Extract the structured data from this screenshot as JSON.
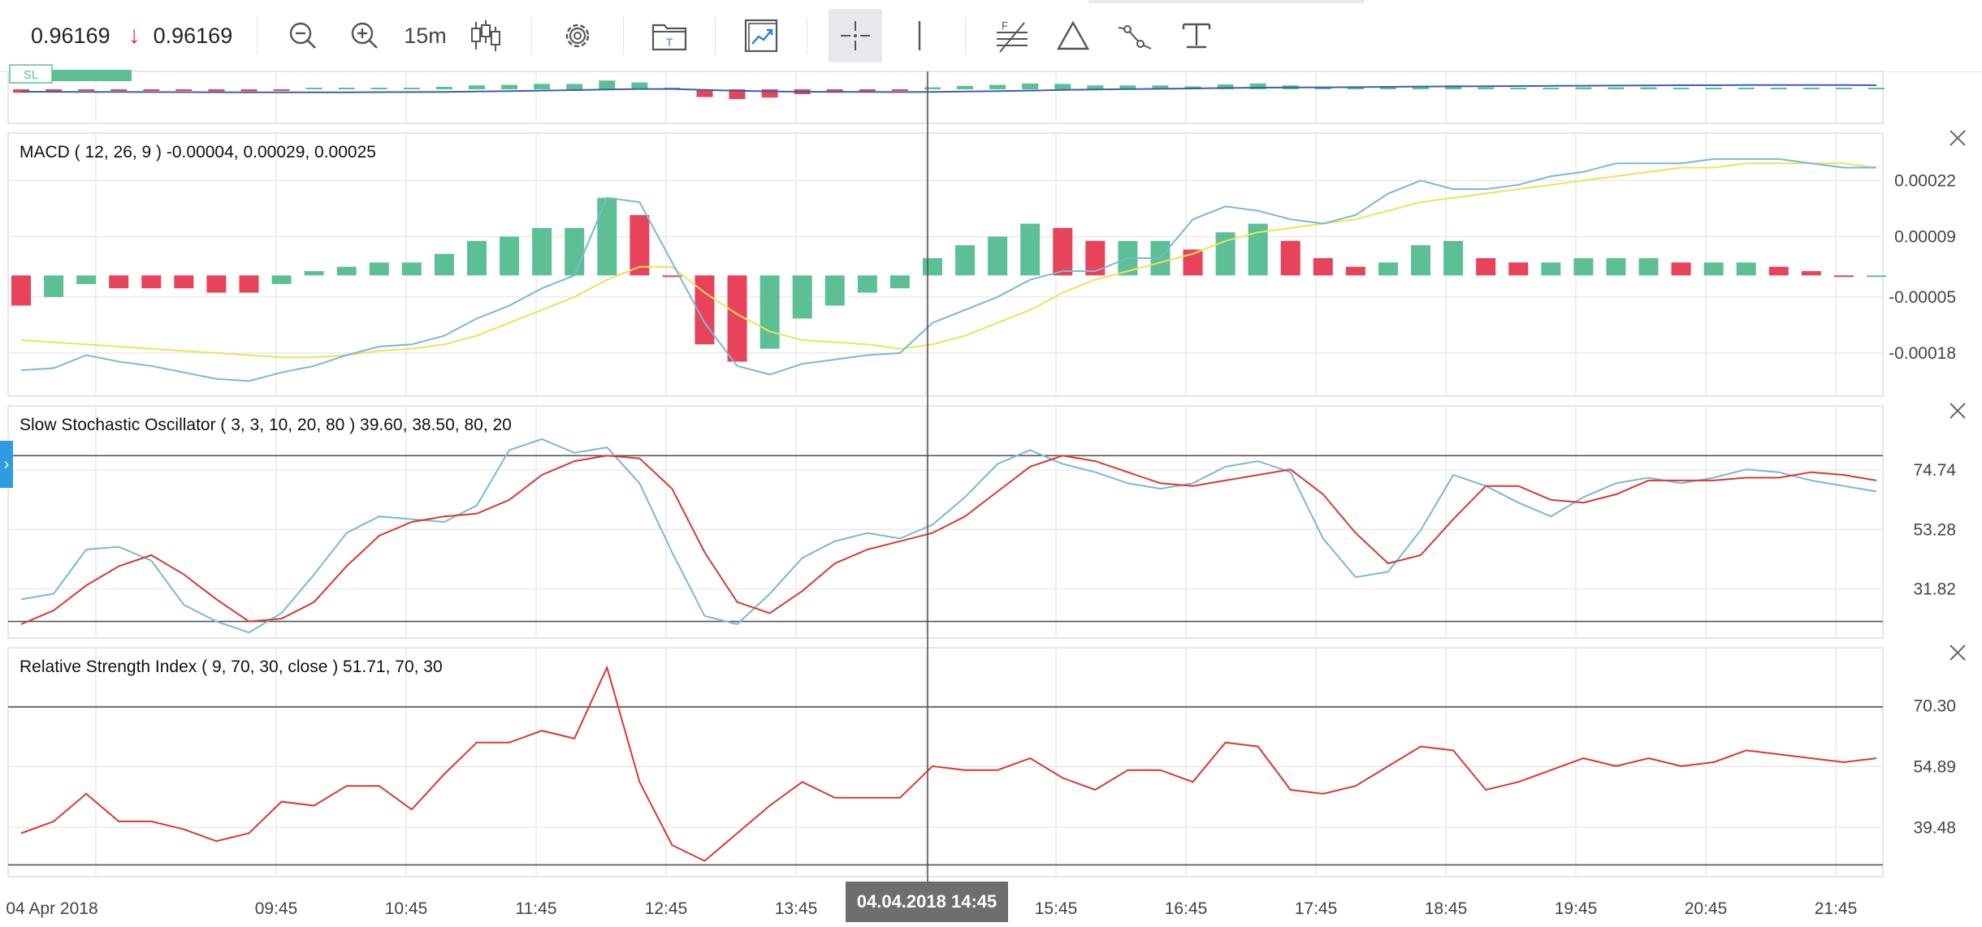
{
  "toolbar": {
    "bid": "0.96169",
    "ask": "0.96169",
    "timeframe": "15m",
    "colors": {
      "down_arrow": "#e0303a",
      "active_tool_bg": "#e6e8ec"
    },
    "icons": [
      "zoom-out-icon",
      "zoom-in-icon",
      "candlestick-icon",
      "gear-icon",
      "template-folder-icon",
      "indicator-chart-icon",
      "crosshair-icon",
      "vertical-line-icon",
      "fibonacci-icon",
      "triangle-icon",
      "trend-line-icon",
      "text-tool-icon"
    ]
  },
  "mini_chart": {
    "sl_badge": "SL"
  },
  "colors": {
    "up": "#5dbf96",
    "down": "#e8435a",
    "blue_line": "#7ab8d6",
    "yellow_line": "#ece35a",
    "red_line": "#d9392f",
    "grid": "#e6e6e6",
    "level": "#555555"
  },
  "macd": {
    "label": "MACD ( 12, 26, 9 ) -0.00004, 0.00029, 0.00025",
    "ticks": [
      "0.00022",
      "0.00009",
      "-0.00005",
      "-0.00018"
    ],
    "tick_values": [
      0.00022,
      9e-05,
      -5e-05,
      -0.00018
    ],
    "ylim": [
      -0.00028,
      0.00033
    ],
    "histogram": [
      -7e-05,
      -5e-05,
      -2e-05,
      -3e-05,
      -3e-05,
      -3e-05,
      -4e-05,
      -4e-05,
      -2e-05,
      1e-05,
      2e-05,
      3e-05,
      3e-05,
      5e-05,
      8e-05,
      9e-05,
      0.00011,
      0.00011,
      0.00018,
      0.00014,
      0.0,
      -0.00016,
      -0.0002,
      -0.00017,
      -0.0001,
      -7e-05,
      -4e-05,
      -3e-05,
      4e-05,
      7e-05,
      9e-05,
      0.00012,
      0.00011,
      8e-05,
      8e-05,
      8e-05,
      6e-05,
      0.0001,
      0.00012,
      8e-05,
      4e-05,
      2e-05,
      3e-05,
      7e-05,
      8e-05,
      4e-05,
      3e-05,
      3e-05,
      4e-05,
      4e-05,
      4e-05,
      3e-05,
      3e-05,
      3e-05,
      2e-05,
      1e-05,
      0.0,
      0.0
    ],
    "macd_line": [
      -0.00022,
      -0.000215,
      -0.000185,
      -0.0002,
      -0.00021,
      -0.000225,
      -0.00024,
      -0.000245,
      -0.000225,
      -0.00021,
      -0.000185,
      -0.000165,
      -0.00016,
      -0.00014,
      -0.0001,
      -7e-05,
      -3e-05,
      0.0,
      0.00018,
      0.00017,
      3e-05,
      -0.00011,
      -0.00021,
      -0.00023,
      -0.000205,
      -0.000195,
      -0.000185,
      -0.00018,
      -0.00011,
      -8e-05,
      -5e-05,
      -1e-05,
      1e-05,
      1e-05,
      4e-05,
      4e-05,
      0.00013,
      0.00016,
      0.00015,
      0.00013,
      0.00012,
      0.00014,
      0.00019,
      0.00022,
      0.0002,
      0.0002,
      0.00021,
      0.00023,
      0.00024,
      0.00026,
      0.00026,
      0.00026,
      0.00027,
      0.00027,
      0.00027,
      0.00026,
      0.00025,
      0.00025
    ],
    "signal_line": [
      -0.00015,
      -0.000155,
      -0.00016,
      -0.000165,
      -0.00017,
      -0.000175,
      -0.00018,
      -0.000185,
      -0.00019,
      -0.00019,
      -0.000185,
      -0.000175,
      -0.00017,
      -0.00016,
      -0.00014,
      -0.00011,
      -8e-05,
      -5e-05,
      -1e-05,
      2e-05,
      2e-05,
      -4e-05,
      -9e-05,
      -0.00013,
      -0.00015,
      -0.000155,
      -0.00016,
      -0.00017,
      -0.00016,
      -0.00014,
      -0.00011,
      -8e-05,
      -4e-05,
      -1e-05,
      1e-05,
      3e-05,
      5e-05,
      8e-05,
      0.0001,
      0.00011,
      0.00012,
      0.00013,
      0.00015,
      0.00017,
      0.00018,
      0.00019,
      0.0002,
      0.00021,
      0.00022,
      0.00023,
      0.00024,
      0.00025,
      0.00025,
      0.00026,
      0.00026,
      0.00026,
      0.00026,
      0.00025
    ]
  },
  "stochastic": {
    "label": "Slow Stochastic Oscillator ( 3, 3, 10, 20, 80 ) 39.60, 38.50, 80, 20",
    "ticks": [
      "74.74",
      "53.28",
      "31.82"
    ],
    "tick_values": [
      74.74,
      53.28,
      31.82
    ],
    "levels": [
      80,
      20
    ],
    "ylim": [
      14,
      98
    ],
    "k_line": [
      28,
      30,
      46,
      47,
      42,
      26,
      20,
      16,
      23,
      37,
      52,
      58,
      57,
      56,
      62,
      82,
      86,
      81,
      83,
      70,
      45,
      22,
      19,
      30,
      43,
      49,
      52,
      50,
      55,
      65,
      77,
      82,
      77,
      74,
      70,
      68,
      70,
      76,
      78,
      74,
      50,
      36,
      38,
      53,
      73,
      69,
      63,
      58,
      65,
      70,
      72,
      70,
      72,
      75,
      74,
      71,
      69,
      67
    ],
    "d_line": [
      19,
      24,
      33,
      40,
      44,
      37,
      28,
      20,
      21,
      27,
      40,
      51,
      56,
      58,
      59,
      64,
      73,
      78,
      80,
      79,
      68,
      45,
      27,
      23,
      31,
      41,
      46,
      49,
      52,
      58,
      67,
      76,
      80,
      78,
      74,
      70,
      69,
      71,
      73,
      75,
      66,
      52,
      41,
      44,
      57,
      69,
      69,
      64,
      63,
      66,
      71,
      71,
      71,
      72,
      72,
      74,
      73,
      71
    ]
  },
  "rsi": {
    "label": "Relative Strength Index ( 9, 70, 30, close ) 51.71, 70, 30",
    "ticks": [
      "70.30",
      "54.89",
      "39.48"
    ],
    "tick_values": [
      70.3,
      54.89,
      39.48
    ],
    "levels": [
      70,
      30
    ],
    "ylim": [
      27,
      85
    ],
    "values": [
      38,
      41,
      48,
      41,
      41,
      39,
      36,
      38,
      46,
      45,
      50,
      50,
      44,
      53,
      61,
      61,
      64,
      62,
      80,
      51,
      35,
      31,
      38,
      45,
      51,
      47,
      47,
      47,
      55,
      54,
      54,
      57,
      52,
      49,
      54,
      54,
      51,
      61,
      60,
      49,
      48,
      50,
      55,
      60,
      59,
      49,
      51,
      54,
      57,
      55,
      57,
      55,
      56,
      59,
      58,
      57,
      56,
      57
    ]
  },
  "x_axis": {
    "labels": [
      "04 Apr 2018",
      "09:45",
      "10:45",
      "11:45",
      "12:45",
      "13:45",
      "15:45",
      "16:45",
      "17:45",
      "18:45",
      "19:45",
      "20:45",
      "21:45"
    ],
    "crosshair_time": "04.04.2018 14:45"
  }
}
